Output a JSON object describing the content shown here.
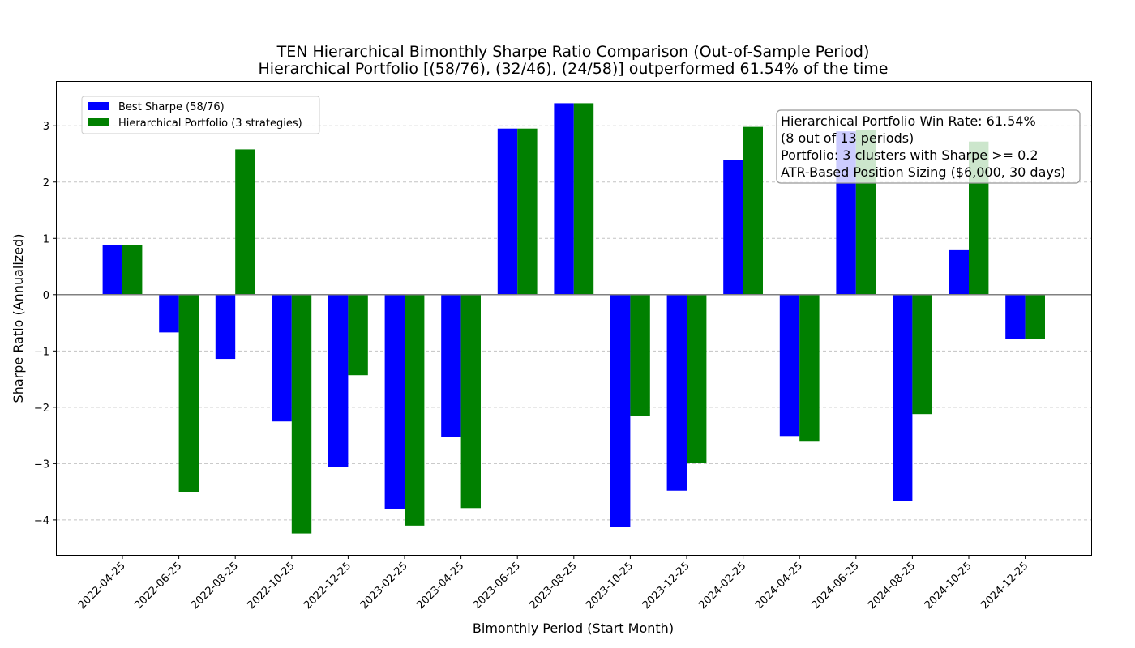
{
  "chart_data": {
    "type": "bar",
    "title": "TEN Hierarchical Bimonthly Sharpe Ratio Comparison (Out-of-Sample Period)",
    "subtitle": "Hierarchical Portfolio [(58/76), (32/46), (24/58)] outperformed 61.54% of the time",
    "xlabel": "Bimonthly Period (Start Month)",
    "ylabel": "Sharpe Ratio (Annualized)",
    "ylim": [
      -4.62,
      3.78
    ],
    "yticks": [
      -4,
      -3,
      -2,
      -1,
      0,
      1,
      2,
      3
    ],
    "ytick_labels": [
      "−4",
      "−3",
      "−2",
      "−1",
      "0",
      "1",
      "2",
      "3"
    ],
    "grid": "y-dashed",
    "legend_position": "top-left",
    "categories": [
      "2022-04-25",
      "2022-06-25",
      "2022-08-25",
      "2022-10-25",
      "2022-12-25",
      "2023-02-25",
      "2023-04-25",
      "2023-06-25",
      "2023-08-25",
      "2023-10-25",
      "2023-12-25",
      "2024-02-25",
      "2024-04-25",
      "2024-06-25",
      "2024-08-25",
      "2024-10-25",
      "2024-12-25"
    ],
    "series": [
      {
        "name": "Best Sharpe (58/76)",
        "color": "#0000ff",
        "values": [
          0.88,
          -0.67,
          -1.14,
          -2.25,
          -3.06,
          -3.8,
          -2.52,
          2.95,
          3.4,
          -4.12,
          -3.48,
          2.39,
          -2.51,
          2.9,
          -3.67,
          0.79,
          -0.78
        ]
      },
      {
        "name": "Hierarchical Portfolio (3 strategies)",
        "color": "#008000",
        "values": [
          0.88,
          -3.51,
          2.58,
          -4.24,
          -1.43,
          -4.1,
          -3.79,
          2.95,
          3.4,
          -2.15,
          -2.99,
          2.98,
          -2.61,
          2.93,
          -2.12,
          2.72,
          -0.78
        ]
      }
    ],
    "annotation": {
      "lines": [
        "Hierarchical Portfolio Win Rate: 61.54%",
        "(8 out of 13 periods)",
        "Portfolio: 3 clusters with Sharpe >= 0.2",
        "ATR-Based Position Sizing ($6,000, 30 days)"
      ],
      "position": "top-right"
    }
  }
}
